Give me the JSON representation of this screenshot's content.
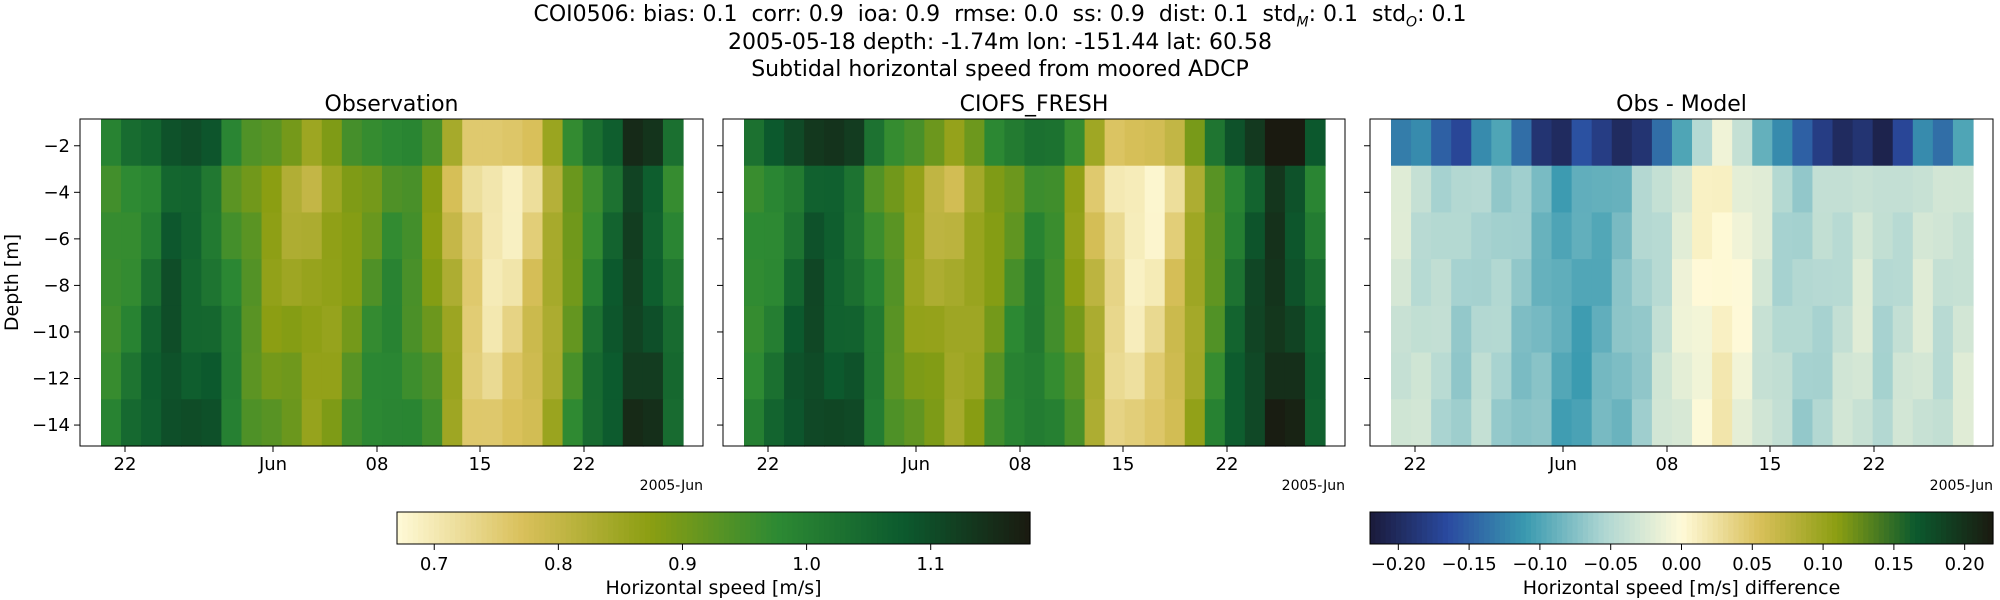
{
  "figure": {
    "title_line1": "COI0506: bias: 0.1  corr: 0.9  ioa: 0.9  rmse: 0.0  ss: 0.9  dist: 0.1  std",
    "title_line1_sub_m": "M",
    "title_line1_mid": ": 0.1  std",
    "title_line1_sub_o": "O",
    "title_line1_end": ": 0.1",
    "title_line2": "2005-05-18 depth: -1.74m lon: -151.44 lat: 60.58",
    "title_line3": "Subtidal horizontal speed from moored ADCP"
  },
  "chart_data": [
    {
      "type": "heatmap",
      "title": "Observation",
      "ylabel": "Depth [m]",
      "xlabel": "",
      "x_tick_labels": [
        "22",
        "Jun",
        "08",
        "15",
        "22"
      ],
      "x_offset_label": "2005-Jun",
      "y_ticks": [
        -2,
        -4,
        -6,
        -8,
        -10,
        -12,
        -14
      ],
      "ylim": [
        -14.9,
        -0.85
      ],
      "depth_levels": [
        -1.74,
        -3.74,
        -5.74,
        -7.74,
        -9.74,
        -11.74,
        -13.74
      ],
      "colorbar": "speed",
      "time_profile": [
        0.96,
        0.99,
        1.03,
        1.08,
        1.06,
        1.04,
        0.97,
        0.92,
        0.88,
        0.86,
        0.84,
        0.86,
        0.9,
        0.94,
        0.97,
        0.95,
        0.9,
        0.82,
        0.74,
        0.71,
        0.72,
        0.76,
        0.83,
        0.92,
        1.0,
        1.06,
        1.12,
        1.09,
        1.01
      ]
    },
    {
      "type": "heatmap",
      "title": "CIOFS_FRESH",
      "x_tick_labels": [
        "22",
        "Jun",
        "08",
        "15",
        "22"
      ],
      "x_offset_label": "2005-Jun",
      "y_ticks": [
        -2,
        -4,
        -6,
        -8,
        -10,
        -12,
        -14
      ],
      "ylim": [
        -14.9,
        -0.85
      ],
      "colorbar": "speed",
      "time_profile": [
        0.97,
        1.0,
        1.05,
        1.09,
        1.07,
        1.05,
        0.98,
        0.92,
        0.87,
        0.84,
        0.82,
        0.85,
        0.9,
        0.95,
        0.99,
        0.96,
        0.89,
        0.8,
        0.72,
        0.7,
        0.71,
        0.76,
        0.84,
        0.94,
        1.03,
        1.09,
        1.14,
        1.11,
        1.03
      ]
    },
    {
      "type": "heatmap",
      "title": "Obs - Model",
      "x_tick_labels": [
        "22",
        "Jun",
        "08",
        "15",
        "22"
      ],
      "x_offset_label": "2005-Jun",
      "y_ticks": [
        -2,
        -4,
        -6,
        -8,
        -10,
        -12,
        -14
      ],
      "ylim": [
        -14.9,
        -0.85
      ],
      "colorbar": "difference",
      "top_row_profile": [
        -0.13,
        -0.12,
        -0.15,
        -0.17,
        -0.12,
        -0.1,
        -0.14,
        -0.19,
        -0.2,
        -0.16,
        -0.18,
        -0.2,
        -0.19,
        -0.14,
        -0.1,
        -0.05,
        -0.01,
        -0.04,
        -0.09,
        -0.12,
        -0.15,
        -0.18,
        -0.2,
        -0.19,
        -0.21,
        -0.17,
        -0.12,
        -0.14,
        -0.1
      ],
      "lower_profile": [
        -0.03,
        -0.04,
        -0.05,
        -0.06,
        -0.05,
        -0.06,
        -0.07,
        -0.08,
        -0.1,
        -0.1,
        -0.09,
        -0.08,
        -0.06,
        -0.04,
        -0.02,
        0.0,
        0.01,
        -0.01,
        -0.03,
        -0.05,
        -0.06,
        -0.05,
        -0.04,
        -0.03,
        -0.05,
        -0.04,
        -0.03,
        -0.04,
        -0.03
      ]
    }
  ],
  "colorbars": {
    "speed": {
      "label": "Horizontal speed [m/s]",
      "range": [
        0.67,
        1.18
      ],
      "ticks": [
        "0.7",
        "0.8",
        "0.9",
        "1.0",
        "1.1"
      ],
      "tick_values": [
        0.7,
        0.8,
        0.9,
        1.0,
        1.1
      ],
      "colors": [
        "#fffad8",
        "#d9c05a",
        "#8b9e12",
        "#2d8a33",
        "#0c5a2e",
        "#1a1a10"
      ]
    },
    "difference": {
      "label": "Horizontal speed [m/s] difference",
      "range": [
        -0.22,
        0.22
      ],
      "ticks": [
        "−0.20",
        "−0.15",
        "−0.10",
        "−0.05",
        "0.00",
        "0.05",
        "0.10",
        "0.15",
        "0.20"
      ],
      "tick_values": [
        -0.2,
        -0.15,
        -0.1,
        -0.05,
        0.0,
        0.05,
        0.1,
        0.15,
        0.2
      ],
      "colors": [
        "#1a1a3a",
        "#2a4aa0",
        "#3a9ab0",
        "#aed6d2",
        "#fffad8",
        "#d9c05a",
        "#8b9e12",
        "#0c5a2e",
        "#1a1a10"
      ]
    }
  }
}
